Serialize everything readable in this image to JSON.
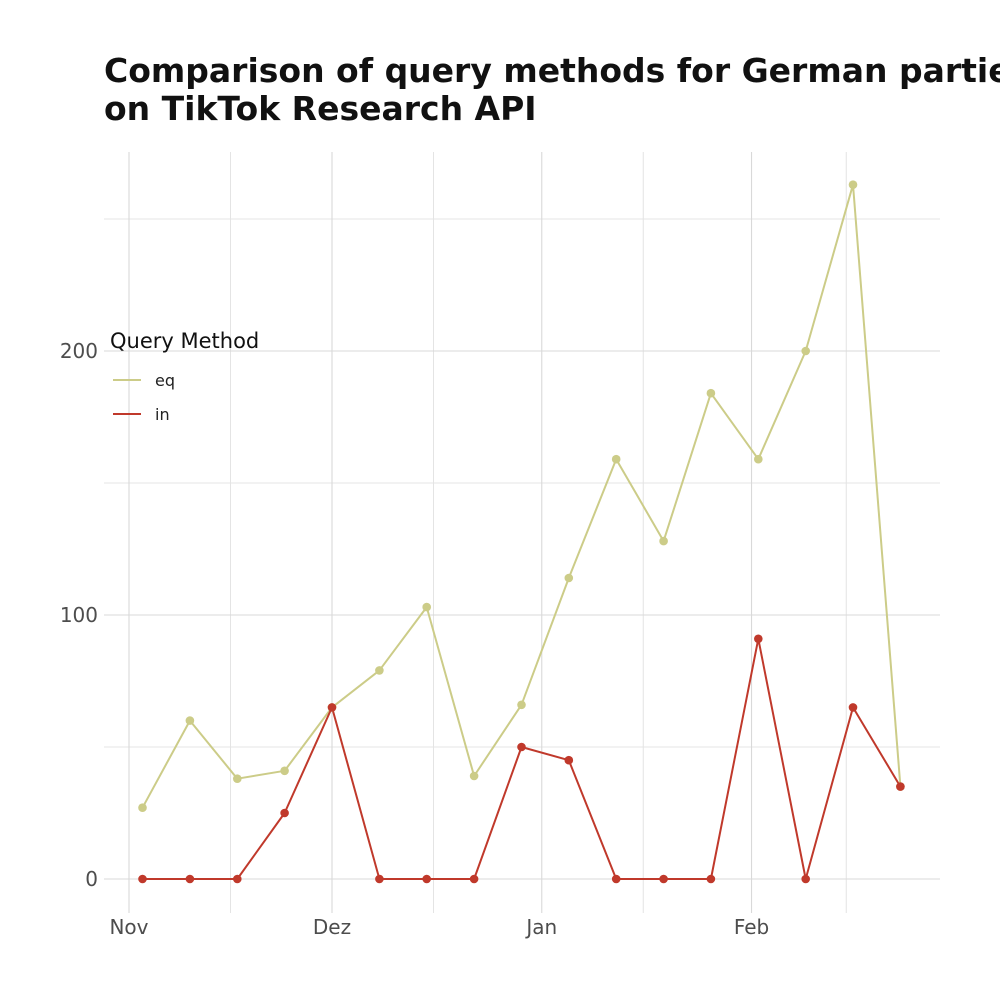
{
  "chart_data": {
    "type": "line",
    "title_lines": [
      "Comparison of query methods for German parties/",
      "on TikTok Research API"
    ],
    "x_ticks": [
      "Nov",
      "Dez",
      "Jan",
      "Feb"
    ],
    "y_ticks": [
      0,
      100,
      200
    ],
    "ylim": [
      -12,
      277
    ],
    "grid": true,
    "legend": {
      "title": "Query Method",
      "position": "left"
    },
    "x": [
      "2023-11-03",
      "2023-11-10",
      "2023-11-17",
      "2023-11-24",
      "2023-12-01",
      "2023-12-08",
      "2023-12-15",
      "2023-12-22",
      "2023-12-29",
      "2024-01-05",
      "2024-01-12",
      "2024-01-19",
      "2024-01-26",
      "2024-02-02",
      "2024-02-09",
      "2024-02-16",
      "2024-02-23"
    ],
    "series": [
      {
        "name": "eq",
        "color": "#cccc88",
        "values": [
          27,
          60,
          38,
          41,
          65,
          79,
          103,
          39,
          66,
          114,
          159,
          128,
          184,
          159,
          200,
          263,
          35
        ]
      },
      {
        "name": "in",
        "color": "#c0392b",
        "values": [
          0,
          0,
          0,
          25,
          65,
          0,
          0,
          0,
          50,
          45,
          0,
          0,
          0,
          91,
          0,
          65,
          35
        ]
      }
    ]
  }
}
